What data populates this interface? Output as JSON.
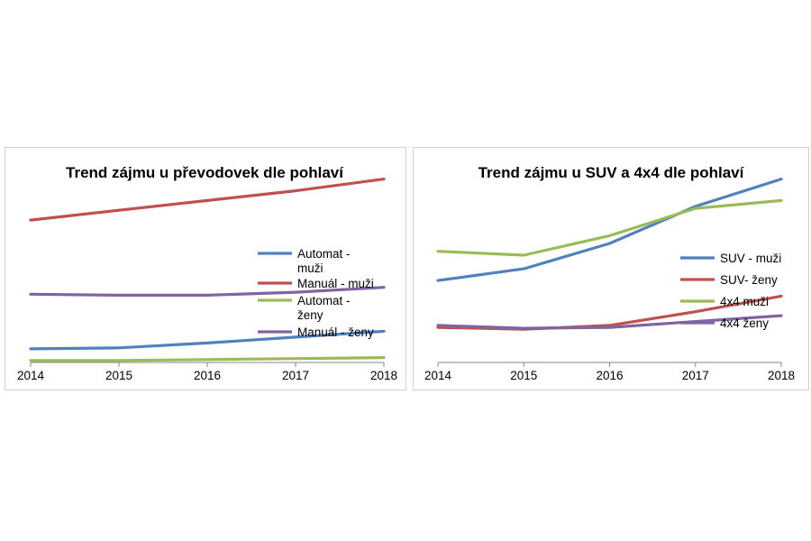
{
  "chart_data": [
    {
      "type": "line",
      "title": "Trend zájmu u převodovek dle pohlaví",
      "xlabel": "",
      "ylabel": "",
      "categories": [
        "2014",
        "2015",
        "2016",
        "2017",
        "2018"
      ],
      "ylim": [
        0,
        11
      ],
      "grid": false,
      "legend_position": "right",
      "series": [
        {
          "name": "Automat - muži",
          "color": "#4f81bd",
          "values": [
            0.7,
            0.75,
            1.0,
            1.3,
            1.6
          ]
        },
        {
          "name": "Manuál - muži",
          "color": "#c0504d",
          "values": [
            7.3,
            7.8,
            8.3,
            8.8,
            9.4
          ]
        },
        {
          "name": "Automat - ženy",
          "color": "#9bbb59",
          "values": [
            0.1,
            0.1,
            0.15,
            0.2,
            0.25
          ]
        },
        {
          "name": "Manuál - ženy",
          "color": "#8064a2",
          "values": [
            3.5,
            3.45,
            3.45,
            3.6,
            3.85
          ]
        }
      ]
    },
    {
      "type": "line",
      "title": "Trend zájmu u SUV a 4x4 dle pohlaví",
      "xlabel": "",
      "ylabel": "",
      "categories": [
        "2014",
        "2015",
        "2016",
        "2017",
        "2018"
      ],
      "ylim": [
        0,
        11
      ],
      "grid": false,
      "legend_position": "right",
      "series": [
        {
          "name": "SUV - muži",
          "color": "#4f81bd",
          "values": [
            4.2,
            4.8,
            6.1,
            8.0,
            9.4
          ]
        },
        {
          "name": "SUV- ženy",
          "color": "#c0504d",
          "values": [
            1.8,
            1.7,
            1.9,
            2.6,
            3.4
          ]
        },
        {
          "name": "4x4 muži",
          "color": "#9bbb59",
          "values": [
            5.7,
            5.5,
            6.5,
            7.9,
            8.3
          ]
        },
        {
          "name": "4x4 ženy",
          "color": "#8064a2",
          "values": [
            1.9,
            1.75,
            1.8,
            2.1,
            2.4
          ]
        }
      ]
    }
  ]
}
